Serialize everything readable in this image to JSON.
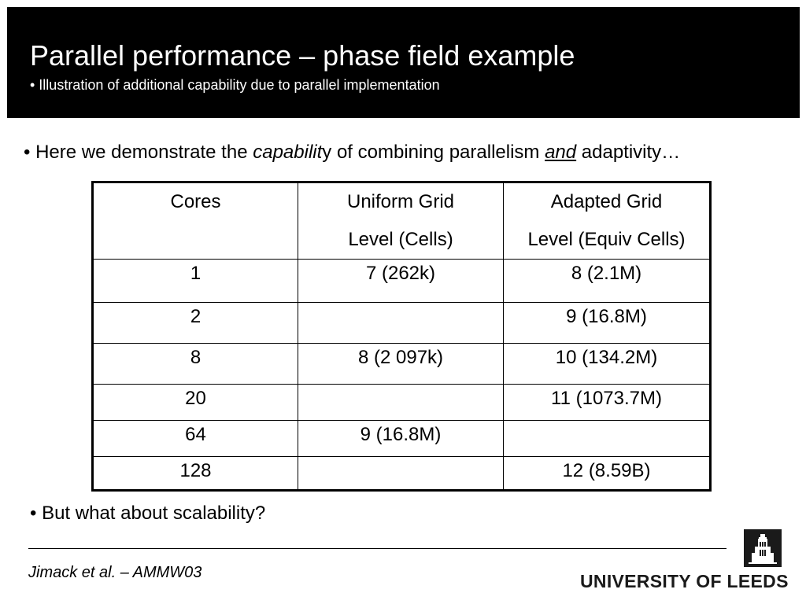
{
  "header": {
    "title": "Parallel performance – phase field example",
    "subtitle": "• Illustration of additional capability due to parallel implementation"
  },
  "intro": {
    "prefix": "• Here we demonstrate the ",
    "emph_italic": "capabilit",
    "emph_rest": "y",
    "middle": " of combining parallelism ",
    "underlined": "and",
    "suffix": " adaptivity…"
  },
  "table": {
    "headers": [
      {
        "line1": "Cores",
        "line2": ""
      },
      {
        "line1": "Uniform Grid",
        "line2": "Level (Cells)"
      },
      {
        "line1": "Adapted Grid",
        "line2": "Level (Equiv Cells)"
      }
    ],
    "rows": [
      {
        "cores": "1",
        "uniform": "7 (262k)",
        "adapted": "8 (2.1M)"
      },
      {
        "cores": "2",
        "uniform": "",
        "adapted": "9 (16.8M)"
      },
      {
        "cores": "8",
        "uniform": "8 (2 097k)",
        "adapted": "10 (134.2M)"
      },
      {
        "cores": "20",
        "uniform": "",
        "adapted": "11 (1073.7M)"
      },
      {
        "cores": "64",
        "uniform": "9 (16.8M)",
        "adapted": ""
      },
      {
        "cores": "128",
        "uniform": "",
        "adapted": "12 (8.59B)"
      }
    ]
  },
  "question": "• But what about scalability?",
  "footer": {
    "citation": "Jimack et al. – AMMW03",
    "logo_text": "UNIVERSITY OF LEEDS"
  },
  "colors": {
    "header_bg": "#000000",
    "header_text": "#ffffff"
  }
}
